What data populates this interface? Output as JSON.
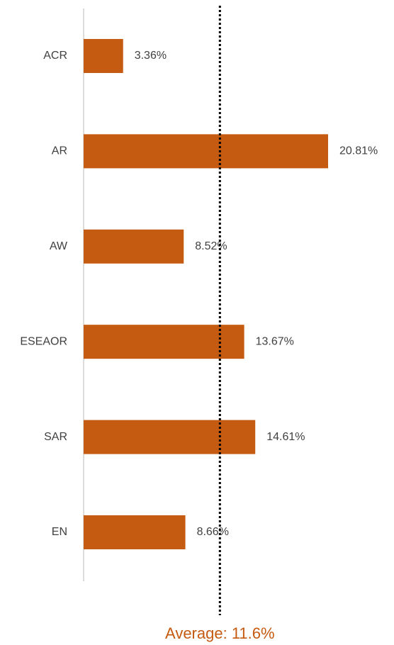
{
  "chart_data": {
    "type": "bar",
    "orientation": "horizontal",
    "categories": [
      "ACR",
      "AR",
      "AW",
      "ESEAOR",
      "SAR",
      "EN"
    ],
    "values": [
      3.36,
      20.81,
      8.52,
      13.67,
      14.61,
      8.66
    ],
    "value_labels": [
      "3.36%",
      "20.81%",
      "8.52%",
      "13.67%",
      "14.61%",
      "8.66%"
    ],
    "color": "#c55a11",
    "average": {
      "value": 11.6,
      "label": "Average: 11.6%"
    }
  }
}
